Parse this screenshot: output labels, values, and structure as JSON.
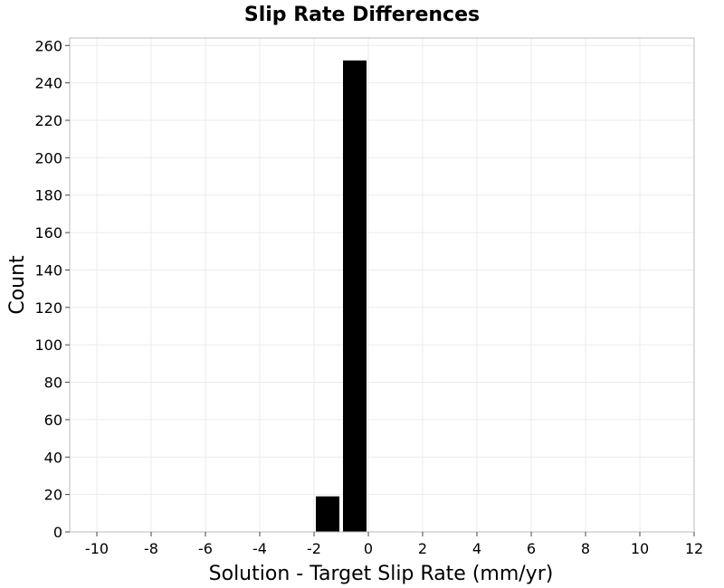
{
  "chart_data": {
    "type": "bar",
    "title": "Slip Rate Differences",
    "xlabel": "Solution - Target Slip Rate (mm/yr)",
    "ylabel": "Count",
    "xlim": [
      -11,
      12
    ],
    "ylim": [
      0,
      264
    ],
    "xticks": [
      -10,
      -8,
      -6,
      -4,
      -2,
      0,
      2,
      4,
      6,
      8,
      10,
      12
    ],
    "yticks": [
      0,
      20,
      40,
      60,
      80,
      100,
      120,
      140,
      160,
      180,
      200,
      220,
      240,
      260
    ],
    "grid": true,
    "bar_width": 1,
    "bars": [
      {
        "x": -1.5,
        "value": 19
      },
      {
        "x": -0.5,
        "value": 252
      }
    ],
    "colors": {
      "bar": "#000000",
      "grid": "#ebebeb",
      "frame": "#bbbbbb"
    }
  }
}
